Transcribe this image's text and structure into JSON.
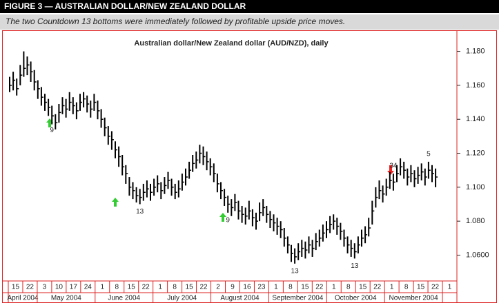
{
  "chart_data": {
    "type": "ohlc",
    "figure_label": "FIGURE 3 — AUSTRALIAN DOLLAR/NEW ZEALAND DOLLAR",
    "subtitle": "The two Countdown 13 bottoms were immediately followed by profitable upside price moves.",
    "title": "Australian dollar/New Zealand dollar (AUD/NZD), daily",
    "color": "#000000",
    "ylim": [
      1.046,
      1.192
    ],
    "yticks": [
      {
        "value": 1.18,
        "label": "1.180"
      },
      {
        "value": 1.16,
        "label": "1.160"
      },
      {
        "value": 1.14,
        "label": "1.140"
      },
      {
        "value": 1.12,
        "label": "1.120"
      },
      {
        "value": 1.1,
        "label": "1.100"
      },
      {
        "value": 1.08,
        "label": "1.080"
      },
      {
        "value": 1.06,
        "label": "1.0600"
      }
    ],
    "days": [
      15,
      22,
      3,
      10,
      17,
      24,
      1,
      8,
      15,
      22,
      1,
      8,
      15,
      22,
      2,
      9,
      16,
      23,
      1,
      8,
      15,
      22,
      1,
      8,
      15,
      22,
      1,
      8,
      15,
      22,
      1
    ],
    "months": [
      "April 2004",
      "May 2004",
      "June 2004",
      "July 2004",
      "August 2004",
      "September 2004",
      "October 2004",
      "November 2004",
      null
    ],
    "high": [
      1.165,
      1.168,
      1.164,
      1.172,
      1.18,
      1.177,
      1.174,
      1.169,
      1.163,
      1.159,
      1.155,
      1.152,
      1.148,
      1.143,
      1.149,
      1.153,
      1.152,
      1.156,
      1.153,
      1.15,
      1.155,
      1.156,
      1.154,
      1.151,
      1.155,
      1.151,
      1.146,
      1.141,
      1.136,
      1.133,
      1.127,
      1.124,
      1.119,
      1.113,
      1.106,
      1.103,
      1.1,
      1.099,
      1.102,
      1.104,
      1.102,
      1.105,
      1.107,
      1.103,
      1.106,
      1.109,
      1.105,
      1.102,
      1.104,
      1.108,
      1.111,
      1.115,
      1.119,
      1.121,
      1.125,
      1.124,
      1.121,
      1.117,
      1.114,
      1.108,
      1.103,
      1.099,
      1.095,
      1.093,
      1.096,
      1.092,
      1.089,
      1.088,
      1.092,
      1.087,
      1.085,
      1.091,
      1.093,
      1.089,
      1.086,
      1.084,
      1.082,
      1.08,
      1.076,
      1.071,
      1.066,
      1.064,
      1.067,
      1.069,
      1.068,
      1.071,
      1.069,
      1.073,
      1.075,
      1.078,
      1.08,
      1.083,
      1.084,
      1.082,
      1.079,
      1.075,
      1.071,
      1.069,
      1.067,
      1.071,
      1.075,
      1.077,
      1.082,
      1.092,
      1.1,
      1.104,
      1.101,
      1.105,
      1.109,
      1.108,
      1.113,
      1.117,
      1.115,
      1.111,
      1.113,
      1.11,
      1.112,
      1.114,
      1.111,
      1.115,
      1.113,
      1.111
    ],
    "low": [
      1.156,
      1.157,
      1.154,
      1.16,
      1.165,
      1.166,
      1.162,
      1.157,
      1.152,
      1.148,
      1.145,
      1.142,
      1.137,
      1.134,
      1.138,
      1.143,
      1.141,
      1.145,
      1.143,
      1.14,
      1.145,
      1.147,
      1.144,
      1.141,
      1.145,
      1.14,
      1.135,
      1.13,
      1.125,
      1.122,
      1.117,
      1.112,
      1.107,
      1.102,
      1.095,
      1.093,
      1.091,
      1.09,
      1.092,
      1.094,
      1.092,
      1.095,
      1.097,
      1.093,
      1.096,
      1.099,
      1.095,
      1.093,
      1.094,
      1.098,
      1.101,
      1.105,
      1.109,
      1.111,
      1.114,
      1.113,
      1.11,
      1.107,
      1.103,
      1.097,
      1.093,
      1.089,
      1.085,
      1.083,
      1.086,
      1.081,
      1.079,
      1.078,
      1.081,
      1.077,
      1.075,
      1.08,
      1.083,
      1.079,
      1.076,
      1.074,
      1.072,
      1.07,
      1.065,
      1.061,
      1.056,
      1.055,
      1.057,
      1.059,
      1.058,
      1.061,
      1.059,
      1.063,
      1.065,
      1.068,
      1.07,
      1.073,
      1.075,
      1.072,
      1.069,
      1.065,
      1.061,
      1.059,
      1.058,
      1.061,
      1.065,
      1.067,
      1.071,
      1.078,
      1.088,
      1.093,
      1.091,
      1.095,
      1.099,
      1.098,
      1.103,
      1.107,
      1.105,
      1.101,
      1.103,
      1.1,
      1.102,
      1.104,
      1.101,
      1.105,
      1.103,
      1.1
    ],
    "close": [
      1.16,
      1.163,
      1.158,
      1.166,
      1.17,
      1.172,
      1.168,
      1.162,
      1.158,
      1.153,
      1.15,
      1.147,
      1.142,
      1.138,
      1.144,
      1.148,
      1.146,
      1.15,
      1.148,
      1.145,
      1.15,
      1.152,
      1.149,
      1.146,
      1.15,
      1.145,
      1.14,
      1.135,
      1.13,
      1.128,
      1.122,
      1.118,
      1.112,
      1.108,
      1.1,
      1.098,
      1.095,
      1.094,
      1.097,
      1.099,
      1.097,
      1.1,
      1.102,
      1.098,
      1.101,
      1.104,
      1.1,
      1.097,
      1.099,
      1.103,
      1.106,
      1.11,
      1.114,
      1.116,
      1.12,
      1.118,
      1.115,
      1.112,
      1.108,
      1.102,
      1.098,
      1.094,
      1.09,
      1.088,
      1.091,
      1.086,
      1.084,
      1.083,
      1.086,
      1.082,
      1.08,
      1.085,
      1.088,
      1.084,
      1.081,
      1.079,
      1.077,
      1.075,
      1.07,
      1.066,
      1.061,
      1.059,
      1.062,
      1.064,
      1.063,
      1.066,
      1.064,
      1.068,
      1.07,
      1.073,
      1.075,
      1.078,
      1.08,
      1.077,
      1.074,
      1.07,
      1.066,
      1.064,
      1.062,
      1.066,
      1.07,
      1.072,
      1.076,
      1.086,
      1.094,
      1.098,
      1.096,
      1.1,
      1.104,
      1.103,
      1.108,
      1.112,
      1.11,
      1.106,
      1.108,
      1.105,
      1.107,
      1.109,
      1.106,
      1.11,
      1.108,
      1.106
    ],
    "annotations": [
      {
        "text": "9",
        "bar": 12,
        "y": 1.1335,
        "color": "#3cb43c"
      },
      {
        "text": "13",
        "bar": 37,
        "y": 1.0855,
        "color": "#e03030"
      },
      {
        "text": "9",
        "bar": 62,
        "y": 1.0805,
        "color": "#3cb43c"
      },
      {
        "text": "13",
        "bar": 81,
        "y": 1.0505,
        "color": "#e03030"
      },
      {
        "text": "13",
        "bar": 98,
        "y": 1.0535,
        "color": "#e03030"
      },
      {
        "text": "34",
        "bar": 109,
        "y": 1.1125,
        "color": "#e03030"
      },
      {
        "text": "5",
        "bar": 119,
        "y": 1.1195,
        "color": "#e03030"
      }
    ]
  }
}
